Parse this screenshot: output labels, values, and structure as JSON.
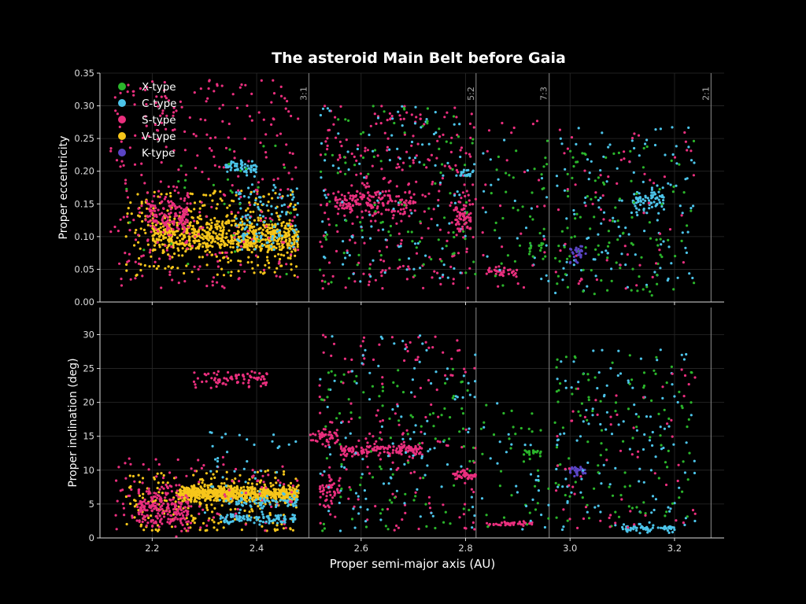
{
  "chart_data": {
    "type": "scatter",
    "title": "The asteroid Main Belt before Gaia",
    "xlabel": "Proper semi-major axis (AU)",
    "xlim": [
      2.1,
      3.295
    ],
    "xticks": [
      "2.2",
      "2.4",
      "2.6",
      "2.8",
      "3.0",
      "3.2"
    ],
    "colors": {
      "X": "#2bb52b",
      "C": "#4cc4ea",
      "S": "#ea2f7e",
      "V": "#f7c61a",
      "K": "#5a44c4"
    },
    "legend": {
      "placement": "top-left",
      "entries": [
        {
          "key": "X",
          "label": "X-type"
        },
        {
          "key": "C",
          "label": "C-type"
        },
        {
          "key": "S",
          "label": "S-type"
        },
        {
          "key": "V",
          "label": "V-type"
        },
        {
          "key": "K",
          "label": "K-type"
        }
      ]
    },
    "resonances": [
      {
        "label": "3:1",
        "a": 2.5
      },
      {
        "label": "5:2",
        "a": 2.82
      },
      {
        "label": "7:3",
        "a": 2.96
      },
      {
        "label": "2:1",
        "a": 3.27
      }
    ],
    "panels": [
      {
        "ylabel": "Proper eccentricity",
        "ylim": [
          0,
          0.35
        ],
        "yticks": [
          "0.00",
          "0.05",
          "0.10",
          "0.15",
          "0.20",
          "0.25",
          "0.30",
          "0.35"
        ],
        "clusters": [
          {
            "type": "V",
            "a": [
              2.2,
              2.48
            ],
            "y": [
              0.1,
              0.013
            ],
            "n": 650,
            "dist": "gauss"
          },
          {
            "type": "V",
            "a": [
              2.15,
              2.48
            ],
            "y": [
              0.04,
              0.17
            ],
            "n": 260,
            "dist": "uniform"
          },
          {
            "type": "S",
            "a": [
              2.19,
              2.27
            ],
            "y": [
              0.135,
              0.015
            ],
            "n": 160,
            "dist": "gauss"
          },
          {
            "type": "S",
            "a": [
              2.12,
              2.48
            ],
            "y": [
              0.02,
              0.34
            ],
            "n": 300,
            "dist": "uniform"
          },
          {
            "type": "C",
            "a": [
              2.34,
              2.4
            ],
            "y": [
              0.207,
              0.006
            ],
            "n": 60,
            "dist": "gauss"
          },
          {
            "type": "C",
            "a": [
              2.36,
              2.48
            ],
            "y": [
              0.08,
              0.18
            ],
            "n": 110,
            "dist": "uniform"
          },
          {
            "type": "X",
            "a": [
              2.15,
              2.48
            ],
            "y": [
              0.03,
              0.25
            ],
            "n": 30,
            "dist": "uniform"
          },
          {
            "type": "S",
            "a": [
              2.55,
              2.7
            ],
            "y": [
              0.152,
              0.01
            ],
            "n": 160,
            "dist": "gauss"
          },
          {
            "type": "S",
            "a": [
              2.52,
              2.82
            ],
            "y": [
              0.02,
              0.3
            ],
            "n": 260,
            "dist": "uniform"
          },
          {
            "type": "C",
            "a": [
              2.52,
              2.82
            ],
            "y": [
              0.03,
              0.3
            ],
            "n": 110,
            "dist": "uniform"
          },
          {
            "type": "X",
            "a": [
              2.52,
              2.82
            ],
            "y": [
              0.03,
              0.3
            ],
            "n": 100,
            "dist": "uniform"
          },
          {
            "type": "C",
            "a": [
              2.79,
              2.815
            ],
            "y": [
              0.197,
              0.003
            ],
            "n": 20,
            "dist": "gauss"
          },
          {
            "type": "S",
            "a": [
              2.78,
              2.81
            ],
            "y": [
              0.13,
              0.015
            ],
            "n": 60,
            "dist": "gauss"
          },
          {
            "type": "S",
            "a": [
              2.84,
              2.9
            ],
            "y": [
              0.046,
              0.004
            ],
            "n": 40,
            "dist": "gauss"
          },
          {
            "type": "X",
            "a": [
              2.83,
              2.96
            ],
            "y": [
              0.02,
              0.25
            ],
            "n": 35,
            "dist": "uniform"
          },
          {
            "type": "C",
            "a": [
              2.83,
              2.96
            ],
            "y": [
              0.02,
              0.25
            ],
            "n": 25,
            "dist": "uniform"
          },
          {
            "type": "S",
            "a": [
              2.83,
              2.96
            ],
            "y": [
              0.02,
              0.3
            ],
            "n": 25,
            "dist": "uniform"
          },
          {
            "type": "X",
            "a": [
              2.92,
              2.95
            ],
            "y": [
              0.08,
              0.006
            ],
            "n": 15,
            "dist": "gauss"
          },
          {
            "type": "C",
            "a": [
              3.12,
              3.18
            ],
            "y": [
              0.155,
              0.01
            ],
            "n": 70,
            "dist": "gauss"
          },
          {
            "type": "C",
            "a": [
              2.97,
              3.24
            ],
            "y": [
              0.01,
              0.27
            ],
            "n": 120,
            "dist": "uniform"
          },
          {
            "type": "X",
            "a": [
              2.97,
              3.24
            ],
            "y": [
              0.01,
              0.25
            ],
            "n": 110,
            "dist": "uniform"
          },
          {
            "type": "S",
            "a": [
              2.97,
              3.24
            ],
            "y": [
              0.02,
              0.27
            ],
            "n": 60,
            "dist": "uniform"
          },
          {
            "type": "K",
            "a": [
              3.0,
              3.03
            ],
            "y": [
              0.075,
              0.008
            ],
            "n": 30,
            "dist": "gauss"
          }
        ]
      },
      {
        "ylabel": "Proper inclination (deg)",
        "ylim": [
          0,
          34
        ],
        "yticks": [
          "0",
          "5",
          "10",
          "15",
          "20",
          "25",
          "30"
        ],
        "clusters": [
          {
            "type": "V",
            "a": [
              2.25,
              2.48
            ],
            "y": [
              6.5,
              0.6
            ],
            "n": 700,
            "dist": "gauss"
          },
          {
            "type": "V",
            "a": [
              2.15,
              2.48
            ],
            "y": [
              1,
              10
            ],
            "n": 220,
            "dist": "uniform"
          },
          {
            "type": "S",
            "a": [
              2.17,
              2.27
            ],
            "y": [
              4.5,
              1.4
            ],
            "n": 200,
            "dist": "gauss"
          },
          {
            "type": "S",
            "a": [
              2.13,
              2.48
            ],
            "y": [
              1,
              12
            ],
            "n": 120,
            "dist": "uniform"
          },
          {
            "type": "S",
            "a": [
              2.28,
              2.42
            ],
            "y": [
              23.5,
              0.6
            ],
            "n": 80,
            "dist": "gauss"
          },
          {
            "type": "C",
            "a": [
              2.33,
              2.48
            ],
            "y": [
              2.8,
              0.35
            ],
            "n": 100,
            "dist": "gauss"
          },
          {
            "type": "C",
            "a": [
              2.34,
              2.48
            ],
            "y": [
              5.3,
              0.4
            ],
            "n": 60,
            "dist": "gauss"
          },
          {
            "type": "C",
            "a": [
              2.3,
              2.48
            ],
            "y": [
              2,
              16
            ],
            "n": 50,
            "dist": "uniform"
          },
          {
            "type": "S",
            "a": [
              2.5,
              2.56
            ],
            "y": [
              15,
              0.5
            ],
            "n": 40,
            "dist": "gauss"
          },
          {
            "type": "S",
            "a": [
              2.56,
              2.72
            ],
            "y": [
              13,
              0.5
            ],
            "n": 150,
            "dist": "gauss"
          },
          {
            "type": "S",
            "a": [
              2.52,
              2.56
            ],
            "y": [
              7,
              1.5
            ],
            "n": 50,
            "dist": "gauss"
          },
          {
            "type": "S",
            "a": [
              2.78,
              2.82
            ],
            "y": [
              9.2,
              0.4
            ],
            "n": 50,
            "dist": "gauss"
          },
          {
            "type": "S",
            "a": [
              2.52,
              2.82
            ],
            "y": [
              1,
              30
            ],
            "n": 150,
            "dist": "uniform"
          },
          {
            "type": "C",
            "a": [
              2.52,
              2.82
            ],
            "y": [
              1,
              30
            ],
            "n": 110,
            "dist": "uniform"
          },
          {
            "type": "X",
            "a": [
              2.52,
              2.82
            ],
            "y": [
              1,
              25
            ],
            "n": 100,
            "dist": "uniform"
          },
          {
            "type": "S",
            "a": [
              2.84,
              2.93
            ],
            "y": [
              2.1,
              0.15
            ],
            "n": 40,
            "dist": "gauss"
          },
          {
            "type": "X",
            "a": [
              2.91,
              2.95
            ],
            "y": [
              12.6,
              0.15
            ],
            "n": 15,
            "dist": "gauss"
          },
          {
            "type": "X",
            "a": [
              2.83,
              2.96
            ],
            "y": [
              1,
              20
            ],
            "n": 35,
            "dist": "uniform"
          },
          {
            "type": "C",
            "a": [
              2.83,
              2.96
            ],
            "y": [
              1,
              20
            ],
            "n": 25,
            "dist": "uniform"
          },
          {
            "type": "C",
            "a": [
              3.1,
              3.2
            ],
            "y": [
              1.4,
              0.25
            ],
            "n": 60,
            "dist": "gauss"
          },
          {
            "type": "K",
            "a": [
              3.0,
              3.03
            ],
            "y": [
              10,
              0.4
            ],
            "n": 30,
            "dist": "gauss"
          },
          {
            "type": "C",
            "a": [
              2.97,
              3.24
            ],
            "y": [
              1,
              28
            ],
            "n": 120,
            "dist": "uniform"
          },
          {
            "type": "X",
            "a": [
              2.97,
              3.24
            ],
            "y": [
              1,
              27
            ],
            "n": 110,
            "dist": "uniform"
          },
          {
            "type": "S",
            "a": [
              2.97,
              3.24
            ],
            "y": [
              1,
              25
            ],
            "n": 60,
            "dist": "uniform"
          }
        ]
      }
    ]
  }
}
